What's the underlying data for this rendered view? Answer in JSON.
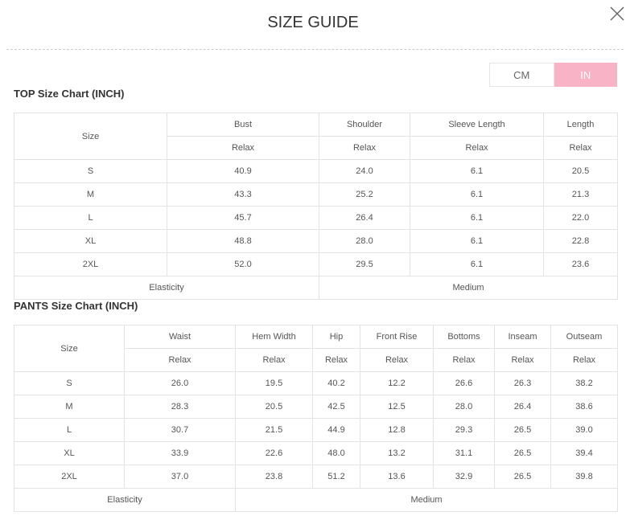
{
  "header": {
    "title": "SIZE GUIDE"
  },
  "units": [
    "CM",
    "IN"
  ],
  "top": {
    "title": "TOP Size Chart (INCH)",
    "size_label": "Size",
    "columns": [
      "Bust",
      "Shoulder",
      "Sleeve Length",
      "Length"
    ],
    "fits": [
      "Relax",
      "Relax",
      "Relax",
      "Relax"
    ],
    "rows": [
      [
        "S",
        "40.9",
        "24.0",
        "6.1",
        "20.5"
      ],
      [
        "M",
        "43.3",
        "25.2",
        "6.1",
        "21.3"
      ],
      [
        "L",
        "45.7",
        "26.4",
        "6.1",
        "22.0"
      ],
      [
        "XL",
        "48.8",
        "28.0",
        "6.1",
        "22.8"
      ],
      [
        "2XL",
        "52.0",
        "29.5",
        "6.1",
        "23.6"
      ]
    ],
    "elasticity": {
      "label": "Elasticity",
      "value": "Medium"
    }
  },
  "pants": {
    "title": "PANTS Size Chart (INCH)",
    "size_label": "Size",
    "columns": [
      "Waist",
      "Hem Width",
      "Hip",
      "Front Rise",
      "Bottoms",
      "Inseam",
      "Outseam"
    ],
    "fits": [
      "Relax",
      "Relax",
      "Relax",
      "Relax",
      "Relax",
      "Relax",
      "Relax"
    ],
    "rows": [
      [
        "S",
        "26.0",
        "19.5",
        "40.2",
        "12.2",
        "26.6",
        "26.3",
        "38.2"
      ],
      [
        "M",
        "28.3",
        "20.5",
        "42.5",
        "12.5",
        "28.0",
        "26.4",
        "38.6"
      ],
      [
        "L",
        "30.7",
        "21.5",
        "44.9",
        "12.8",
        "29.3",
        "26.5",
        "39.0"
      ],
      [
        "XL",
        "33.9",
        "22.6",
        "48.0",
        "13.2",
        "31.1",
        "26.5",
        "39.4"
      ],
      [
        "2XL",
        "37.0",
        "23.8",
        "51.2",
        "13.6",
        "32.9",
        "26.5",
        "39.8"
      ]
    ],
    "elasticity": {
      "label": "Elasticity",
      "value": "Medium"
    }
  }
}
